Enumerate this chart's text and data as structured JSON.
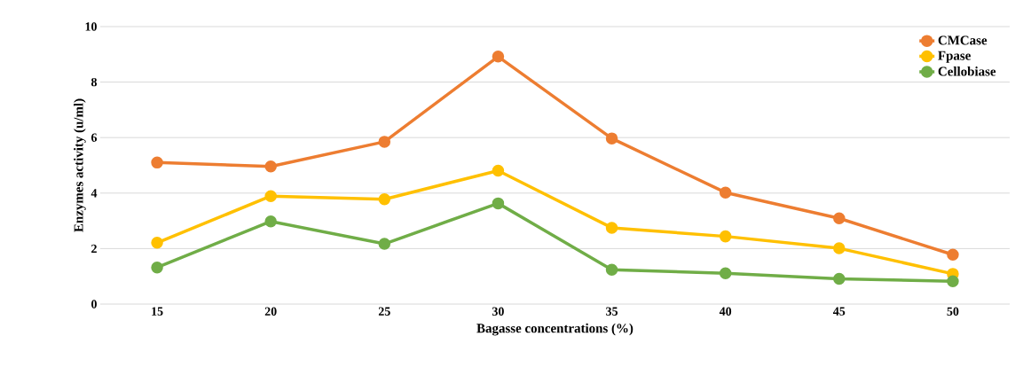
{
  "chart_data": {
    "type": "line",
    "xlabel": "Bagasse concentrations (%)",
    "ylabel": "Enzymes activity (u/ml)",
    "categories": [
      "15",
      "20",
      "25",
      "30",
      "35",
      "40",
      "45",
      "50"
    ],
    "series": [
      {
        "name": "CMCase",
        "color": "#ed7d31",
        "values": [
          5.1,
          4.96,
          5.85,
          8.92,
          5.97,
          4.02,
          3.09,
          1.78
        ]
      },
      {
        "name": "Fpase",
        "color": "#ffc000",
        "values": [
          2.21,
          3.89,
          3.78,
          4.81,
          2.75,
          2.44,
          2.01,
          1.09
        ]
      },
      {
        "name": "Cellobiase",
        "color": "#70ad47",
        "values": [
          1.32,
          2.98,
          2.17,
          3.63,
          1.24,
          1.11,
          0.91,
          0.82
        ]
      }
    ],
    "ylim": [
      0,
      10
    ],
    "yticks": [
      0,
      2,
      4,
      6,
      8,
      10
    ],
    "grid": "y",
    "legend": "top right",
    "marker": "circle",
    "line_style": "solid"
  }
}
